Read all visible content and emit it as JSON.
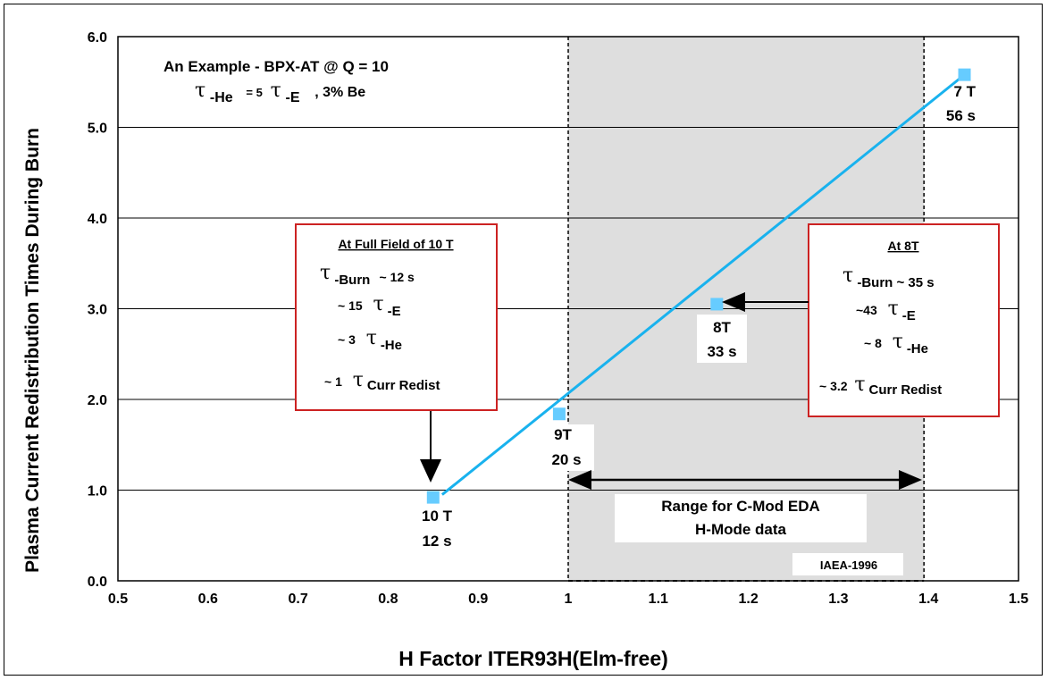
{
  "chart_data": {
    "type": "line",
    "title": "",
    "xlabel": "H Factor ITER93H(Elm-free)",
    "ylabel": "Plasma Current Redistribution Times During Burn",
    "xlim": [
      0.5,
      1.5
    ],
    "ylim": [
      0.0,
      6.0
    ],
    "x_ticks": [
      "0.5",
      "0.6",
      "0.7",
      "0.8",
      "0.9",
      "1",
      "1.1",
      "1.2",
      "1.3",
      "1.4",
      "1.5"
    ],
    "y_ticks": [
      "0.0",
      "1.0",
      "2.0",
      "3.0",
      "4.0",
      "5.0",
      "6.0"
    ],
    "grid": "horizontal",
    "series": [
      {
        "x": [
          0.85,
          0.99,
          1.165,
          1.44
        ],
        "y": [
          0.92,
          1.84,
          3.05,
          5.58
        ]
      }
    ],
    "fit_line": {
      "x": [
        0.86,
        1.44
      ],
      "y": [
        0.95,
        5.58
      ]
    },
    "point_labels": [
      {
        "line1": "10 T",
        "line2": "12 s"
      },
      {
        "line1": "9T",
        "line2": "20 s"
      },
      {
        "line1": "8T",
        "line2": "33 s"
      },
      {
        "line1": "7 T",
        "line2": "56 s"
      }
    ],
    "shaded_region": {
      "x": [
        1.0,
        1.395
      ]
    },
    "range_label": {
      "line1": "Range for C-Mod EDA",
      "line2": "H-Mode data"
    },
    "watermark": "IAEA-1996",
    "example": {
      "line1": "An Example - BPX-AT @ Q = 10",
      "tau": "τ",
      "sub_he": "-He",
      "eq": "= 5",
      "sub_e": "-E",
      "tail": ", 3% Be"
    },
    "box_full_field": {
      "heading": "At Full Field of 10 T",
      "burn_tau": "τ",
      "burn_sub": "-Burn",
      "burn_val": "~ 12 s",
      "e_pre": "~ 15",
      "e_sub": "-E",
      "he_pre": "~ 3",
      "he_sub": "-He",
      "cr_pre": "~ 1",
      "cr_sub": "Curr Redist"
    },
    "box_8t": {
      "heading": "At 8T",
      "burn_sub": "-Burn ~ 35 s",
      "e_pre": "~43",
      "e_sub": "-E",
      "he_pre": "~ 8",
      "he_sub": "-He",
      "cr_pre": "~ 3.2",
      "cr_sub": "Curr Redist"
    },
    "colors": {
      "line": "#19b2ee",
      "marker": "#66ccff",
      "shade": "#dedede",
      "box_border": "#cc2222",
      "grid": "#000000"
    }
  }
}
